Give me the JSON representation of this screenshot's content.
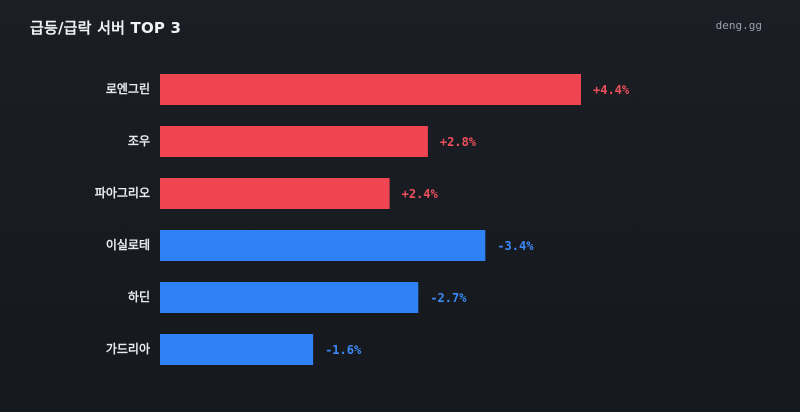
{
  "header": {
    "title": "급등/급락 서버 TOP 3",
    "brand": "deng.gg"
  },
  "colors": {
    "up": "#ef4452",
    "down": "#2f82f5",
    "up_text": "#f0505c",
    "down_text": "#3b8af7"
  },
  "chart_data": {
    "type": "bar",
    "orientation": "horizontal",
    "title": "급등/급락 서버 TOP 3",
    "categories": [
      "로엔그린",
      "조우",
      "파아그리오",
      "이실로테",
      "하딘",
      "가드리아"
    ],
    "values": [
      4.4,
      2.8,
      2.4,
      -3.4,
      -2.7,
      -1.6
    ],
    "value_labels": [
      "+4.4%",
      "+2.8%",
      "+2.4%",
      "-3.4%",
      "-2.7%",
      "-1.6%"
    ],
    "bar_length": "absolute value",
    "xlim": [
      0,
      4.4
    ],
    "grid": false,
    "legend": "none"
  }
}
